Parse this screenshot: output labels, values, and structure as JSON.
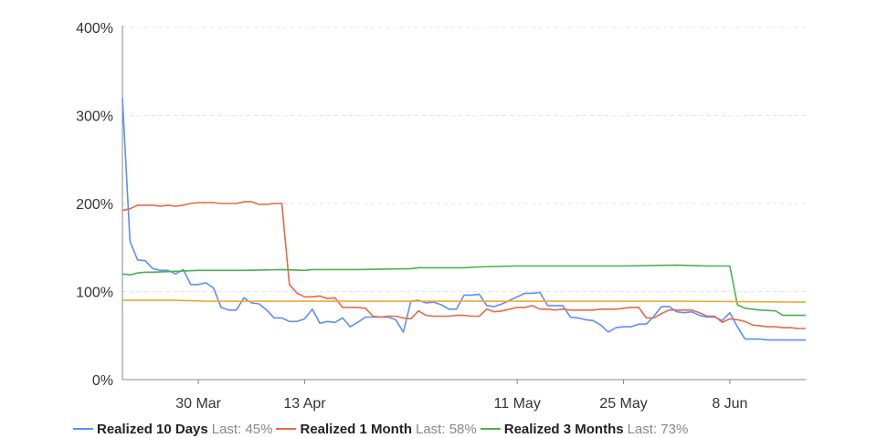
{
  "chart_data": {
    "type": "line",
    "ylim": [
      0,
      400
    ],
    "y_ticks": [
      "0%",
      "100%",
      "200%",
      "300%",
      "400%"
    ],
    "y_tick_values": [
      0,
      100,
      200,
      300,
      400
    ],
    "x_range": [
      "2020-03-20",
      "2020-06-18"
    ],
    "x_ticks": [
      {
        "date": "2020-03-30",
        "label": "30 Mar"
      },
      {
        "date": "2020-04-13",
        "label": "13 Apr"
      },
      {
        "date": "2020-05-11",
        "label": "11 May"
      },
      {
        "date": "2020-05-25",
        "label": "25 May"
      },
      {
        "date": "2020-06-08",
        "label": "8 Jun"
      }
    ],
    "grid": "horizontal-dashed",
    "legend_position": "bottom",
    "series": [
      {
        "name": "Realized 10 Days",
        "last_label": "Last:",
        "last_value": "45%",
        "color": "#5b8ff9",
        "points": [
          [
            "2020-03-20",
            320
          ],
          [
            "2020-03-21",
            157
          ],
          [
            "2020-03-22",
            136
          ],
          [
            "2020-03-23",
            135
          ],
          [
            "2020-03-24",
            126
          ],
          [
            "2020-03-25",
            124
          ],
          [
            "2020-03-26",
            124
          ],
          [
            "2020-03-27",
            120
          ],
          [
            "2020-03-28",
            125
          ],
          [
            "2020-03-29",
            108
          ],
          [
            "2020-03-30",
            108
          ],
          [
            "2020-03-31",
            110
          ],
          [
            "2020-04-01",
            104
          ],
          [
            "2020-04-02",
            82
          ],
          [
            "2020-04-03",
            79
          ],
          [
            "2020-04-04",
            79
          ],
          [
            "2020-04-05",
            93
          ],
          [
            "2020-04-06",
            87
          ],
          [
            "2020-04-07",
            86
          ],
          [
            "2020-04-08",
            79
          ],
          [
            "2020-04-09",
            70
          ],
          [
            "2020-04-10",
            70
          ],
          [
            "2020-04-11",
            66
          ],
          [
            "2020-04-12",
            66
          ],
          [
            "2020-04-13",
            69
          ],
          [
            "2020-04-14",
            80
          ],
          [
            "2020-04-15",
            64
          ],
          [
            "2020-04-16",
            66
          ],
          [
            "2020-04-17",
            65
          ],
          [
            "2020-04-18",
            70
          ],
          [
            "2020-04-19",
            60
          ],
          [
            "2020-04-20",
            65
          ],
          [
            "2020-04-21",
            71
          ],
          [
            "2020-04-22",
            71
          ],
          [
            "2020-04-23",
            71
          ],
          [
            "2020-04-24",
            71
          ],
          [
            "2020-04-25",
            68
          ],
          [
            "2020-04-26",
            54
          ],
          [
            "2020-04-27",
            89
          ],
          [
            "2020-04-28",
            90
          ],
          [
            "2020-04-29",
            87
          ],
          [
            "2020-04-30",
            88
          ],
          [
            "2020-05-01",
            85
          ],
          [
            "2020-05-02",
            80
          ],
          [
            "2020-05-03",
            80
          ],
          [
            "2020-05-04",
            96
          ],
          [
            "2020-05-05",
            96
          ],
          [
            "2020-05-06",
            97
          ],
          [
            "2020-05-07",
            84
          ],
          [
            "2020-05-08",
            83
          ],
          [
            "2020-05-09",
            86
          ],
          [
            "2020-05-10",
            90
          ],
          [
            "2020-05-11",
            94
          ],
          [
            "2020-05-12",
            98
          ],
          [
            "2020-05-13",
            98
          ],
          [
            "2020-05-14",
            99
          ],
          [
            "2020-05-15",
            84
          ],
          [
            "2020-05-16",
            84
          ],
          [
            "2020-05-17",
            84
          ],
          [
            "2020-05-18",
            71
          ],
          [
            "2020-05-19",
            70
          ],
          [
            "2020-05-20",
            68
          ],
          [
            "2020-05-21",
            67
          ],
          [
            "2020-05-22",
            62
          ],
          [
            "2020-05-23",
            54
          ],
          [
            "2020-05-24",
            59
          ],
          [
            "2020-05-25",
            60
          ],
          [
            "2020-05-26",
            60
          ],
          [
            "2020-05-27",
            63
          ],
          [
            "2020-05-28",
            63
          ],
          [
            "2020-05-29",
            72
          ],
          [
            "2020-05-30",
            83
          ],
          [
            "2020-05-31",
            83
          ],
          [
            "2020-06-01",
            77
          ],
          [
            "2020-06-02",
            76
          ],
          [
            "2020-06-03",
            77
          ],
          [
            "2020-06-04",
            73
          ],
          [
            "2020-06-05",
            71
          ],
          [
            "2020-06-06",
            71
          ],
          [
            "2020-06-07",
            67
          ],
          [
            "2020-06-08",
            76
          ],
          [
            "2020-06-09",
            60
          ],
          [
            "2020-06-10",
            46
          ],
          [
            "2020-06-11",
            46
          ],
          [
            "2020-06-12",
            46
          ],
          [
            "2020-06-13",
            45
          ],
          [
            "2020-06-14",
            45
          ],
          [
            "2020-06-15",
            45
          ],
          [
            "2020-06-16",
            45
          ],
          [
            "2020-06-17",
            45
          ],
          [
            "2020-06-18",
            45
          ]
        ]
      },
      {
        "name": "Realized 1 Month",
        "last_label": "Last:",
        "last_value": "58%",
        "color": "#e8684a",
        "points": [
          [
            "2020-03-20",
            192
          ],
          [
            "2020-03-21",
            194
          ],
          [
            "2020-03-22",
            198
          ],
          [
            "2020-03-23",
            198
          ],
          [
            "2020-03-24",
            198
          ],
          [
            "2020-03-25",
            197
          ],
          [
            "2020-03-26",
            198
          ],
          [
            "2020-03-27",
            197
          ],
          [
            "2020-03-28",
            198
          ],
          [
            "2020-03-29",
            200
          ],
          [
            "2020-03-30",
            201
          ],
          [
            "2020-03-31",
            201
          ],
          [
            "2020-04-01",
            201
          ],
          [
            "2020-04-02",
            200
          ],
          [
            "2020-04-03",
            200
          ],
          [
            "2020-04-04",
            200
          ],
          [
            "2020-04-05",
            202
          ],
          [
            "2020-04-06",
            202
          ],
          [
            "2020-04-07",
            199
          ],
          [
            "2020-04-08",
            199
          ],
          [
            "2020-04-09",
            200
          ],
          [
            "2020-04-10",
            200
          ],
          [
            "2020-04-11",
            108
          ],
          [
            "2020-04-12",
            98
          ],
          [
            "2020-04-13",
            94
          ],
          [
            "2020-04-14",
            94
          ],
          [
            "2020-04-15",
            95
          ],
          [
            "2020-04-16",
            92
          ],
          [
            "2020-04-17",
            93
          ],
          [
            "2020-04-18",
            82
          ],
          [
            "2020-04-19",
            82
          ],
          [
            "2020-04-20",
            82
          ],
          [
            "2020-04-21",
            81
          ],
          [
            "2020-04-22",
            72
          ],
          [
            "2020-04-23",
            71
          ],
          [
            "2020-04-24",
            72
          ],
          [
            "2020-04-25",
            72
          ],
          [
            "2020-04-26",
            70
          ],
          [
            "2020-04-27",
            69
          ],
          [
            "2020-04-28",
            78
          ],
          [
            "2020-04-29",
            73
          ],
          [
            "2020-04-30",
            72
          ],
          [
            "2020-05-01",
            72
          ],
          [
            "2020-05-02",
            72
          ],
          [
            "2020-05-03",
            73
          ],
          [
            "2020-05-04",
            73
          ],
          [
            "2020-05-05",
            72
          ],
          [
            "2020-05-06",
            72
          ],
          [
            "2020-05-07",
            80
          ],
          [
            "2020-05-08",
            77
          ],
          [
            "2020-05-09",
            78
          ],
          [
            "2020-05-10",
            80
          ],
          [
            "2020-05-11",
            82
          ],
          [
            "2020-05-12",
            82
          ],
          [
            "2020-05-13",
            84
          ],
          [
            "2020-05-14",
            80
          ],
          [
            "2020-05-15",
            80
          ],
          [
            "2020-05-16",
            79
          ],
          [
            "2020-05-17",
            80
          ],
          [
            "2020-05-18",
            79
          ],
          [
            "2020-05-19",
            79
          ],
          [
            "2020-05-20",
            79
          ],
          [
            "2020-05-21",
            79
          ],
          [
            "2020-05-22",
            80
          ],
          [
            "2020-05-23",
            80
          ],
          [
            "2020-05-24",
            80
          ],
          [
            "2020-05-25",
            81
          ],
          [
            "2020-05-26",
            82
          ],
          [
            "2020-05-27",
            82
          ],
          [
            "2020-05-28",
            70
          ],
          [
            "2020-05-29",
            70
          ],
          [
            "2020-05-30",
            75
          ],
          [
            "2020-05-31",
            79
          ],
          [
            "2020-06-01",
            79
          ],
          [
            "2020-06-02",
            79
          ],
          [
            "2020-06-03",
            79
          ],
          [
            "2020-06-04",
            76
          ],
          [
            "2020-06-05",
            72
          ],
          [
            "2020-06-06",
            72
          ],
          [
            "2020-06-07",
            65
          ],
          [
            "2020-06-08",
            69
          ],
          [
            "2020-06-09",
            68
          ],
          [
            "2020-06-10",
            66
          ],
          [
            "2020-06-11",
            62
          ],
          [
            "2020-06-12",
            61
          ],
          [
            "2020-06-13",
            60
          ],
          [
            "2020-06-14",
            60
          ],
          [
            "2020-06-15",
            59
          ],
          [
            "2020-06-16",
            59
          ],
          [
            "2020-06-17",
            58
          ],
          [
            "2020-06-18",
            58
          ]
        ]
      },
      {
        "name": "Realized 3 Months",
        "last_label": "Last:",
        "last_value": "73%",
        "color": "#4caf50",
        "points": [
          [
            "2020-03-20",
            120
          ],
          [
            "2020-03-21",
            119
          ],
          [
            "2020-03-22",
            121
          ],
          [
            "2020-03-23",
            122
          ],
          [
            "2020-03-24",
            122
          ],
          [
            "2020-03-30",
            124
          ],
          [
            "2020-04-05",
            124
          ],
          [
            "2020-04-10",
            125
          ],
          [
            "2020-04-13",
            124
          ],
          [
            "2020-04-14",
            125
          ],
          [
            "2020-04-20",
            125
          ],
          [
            "2020-04-27",
            126
          ],
          [
            "2020-04-28",
            127
          ],
          [
            "2020-05-04",
            127
          ],
          [
            "2020-05-06",
            128
          ],
          [
            "2020-05-11",
            129
          ],
          [
            "2020-05-18",
            129
          ],
          [
            "2020-05-25",
            129
          ],
          [
            "2020-06-01",
            130
          ],
          [
            "2020-06-05",
            129
          ],
          [
            "2020-06-08",
            129
          ],
          [
            "2020-06-09",
            85
          ],
          [
            "2020-06-10",
            81
          ],
          [
            "2020-06-12",
            79
          ],
          [
            "2020-06-14",
            78
          ],
          [
            "2020-06-15",
            73
          ],
          [
            "2020-06-18",
            73
          ]
        ]
      },
      {
        "color": "#f0a830",
        "points": [
          [
            "2020-03-20",
            90
          ],
          [
            "2020-03-27",
            90
          ],
          [
            "2020-03-31",
            89
          ],
          [
            "2020-04-10",
            89
          ],
          [
            "2020-05-01",
            89
          ],
          [
            "2020-06-01",
            89
          ],
          [
            "2020-06-18",
            88
          ]
        ]
      }
    ]
  }
}
